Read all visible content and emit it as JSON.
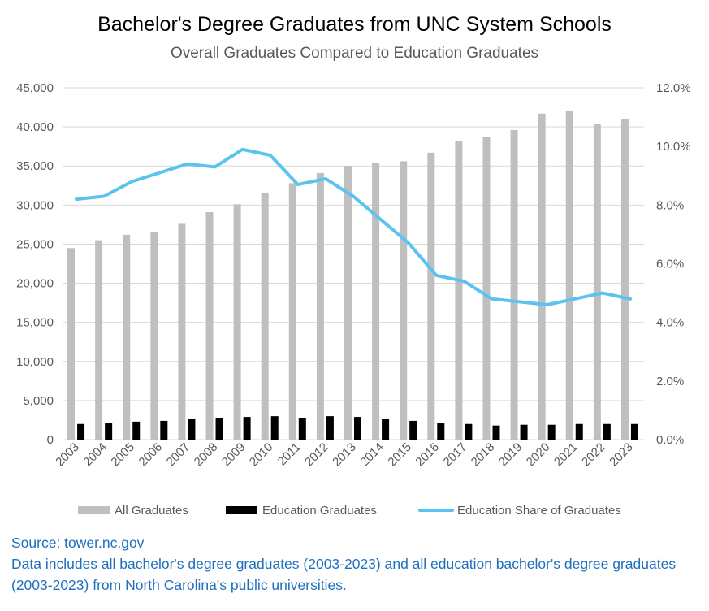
{
  "chart_data": {
    "type": "bar+line",
    "title": "Bachelor's Degree Graduates from UNC System Schools",
    "subtitle": "Overall Graduates Compared to Education Graduates",
    "categories": [
      "2003",
      "2004",
      "2005",
      "2006",
      "2007",
      "2008",
      "2009",
      "2010",
      "2011",
      "2012",
      "2013",
      "2014",
      "2015",
      "2016",
      "2017",
      "2018",
      "2019",
      "2020",
      "2021",
      "2022",
      "2023"
    ],
    "series": [
      {
        "name": "All Graduates",
        "type": "bar",
        "axis": "left",
        "color": "#bfbfbf",
        "values": [
          24500,
          25500,
          26200,
          26500,
          27600,
          29100,
          30100,
          31600,
          32800,
          34100,
          35000,
          35400,
          35600,
          36700,
          38200,
          38700,
          39600,
          41700,
          42100,
          40400,
          41000
        ]
      },
      {
        "name": "Education Graduates",
        "type": "bar",
        "axis": "left",
        "color": "#000000",
        "values": [
          2000,
          2100,
          2300,
          2400,
          2600,
          2700,
          2900,
          3000,
          2800,
          3000,
          2900,
          2600,
          2400,
          2100,
          2000,
          1800,
          1900,
          1900,
          2000,
          2000,
          2000
        ]
      },
      {
        "name": "Education Share of Graduates",
        "type": "line",
        "axis": "right",
        "color": "#5bc4ee",
        "values": [
          0.082,
          0.083,
          0.088,
          0.091,
          0.094,
          0.093,
          0.099,
          0.097,
          0.087,
          0.089,
          0.083,
          0.075,
          0.067,
          0.056,
          0.054,
          0.048,
          0.047,
          0.046,
          0.048,
          0.05,
          0.048
        ]
      }
    ],
    "y_left": {
      "ylim": [
        0,
        45000
      ],
      "ticks": [
        "0",
        "5,000",
        "10,000",
        "15,000",
        "20,000",
        "25,000",
        "30,000",
        "35,000",
        "40,000",
        "45,000"
      ]
    },
    "y_right": {
      "ylim": [
        0,
        0.12
      ],
      "ticks": [
        "0.0%",
        "2.0%",
        "4.0%",
        "6.0%",
        "8.0%",
        "10.0%",
        "12.0%"
      ]
    },
    "grid": true,
    "legend": "bottom"
  },
  "notes": {
    "source": "Source: tower.nc.gov",
    "description": "Data includes all bachelor's degree graduates (2003-2023) and all education bachelor's degree graduates (2003-2023) from North Carolina's public universities."
  }
}
